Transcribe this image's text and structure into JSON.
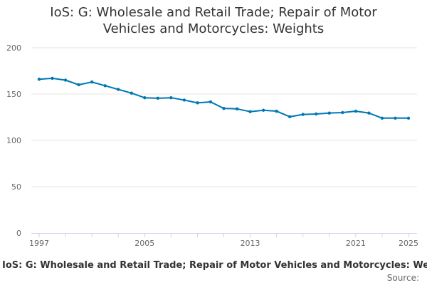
{
  "chart_data": {
    "type": "line",
    "title_lines": [
      "IoS: G: Wholesale and Retail Trade; Repair of Motor",
      "Vehicles and Motorcycles: Weights"
    ],
    "series": [
      {
        "name": "IoS: G: Wholesale and Retail Trade; Repair of Motor Vehicles and Motorcycles: Weights",
        "color": "#0077b5",
        "x": [
          1997,
          1998,
          1999,
          2000,
          2001,
          2002,
          2003,
          2004,
          2005,
          2006,
          2007,
          2008,
          2009,
          2010,
          2011,
          2012,
          2013,
          2014,
          2015,
          2016,
          2017,
          2018,
          2019,
          2020,
          2021,
          2022,
          2023,
          2024,
          2025
        ],
        "values": [
          166,
          167,
          165,
          160,
          163,
          159,
          155,
          151,
          146,
          145.5,
          146,
          143.5,
          140.5,
          141.5,
          134.5,
          134,
          131,
          132.5,
          131.5,
          125.5,
          128,
          128.5,
          129.5,
          130,
          131.5,
          129.5,
          124,
          124,
          124
        ]
      }
    ],
    "x_ticks": [
      1997,
      2005,
      2013,
      2021,
      2025
    ],
    "y_ticks": [
      0,
      50,
      100,
      150,
      200
    ],
    "xlim": [
      1997,
      2025
    ],
    "ylim": [
      0,
      200
    ],
    "xlabel": "",
    "ylabel": "",
    "legend_position": "bottom",
    "source_label": "Source:",
    "grid": true
  }
}
